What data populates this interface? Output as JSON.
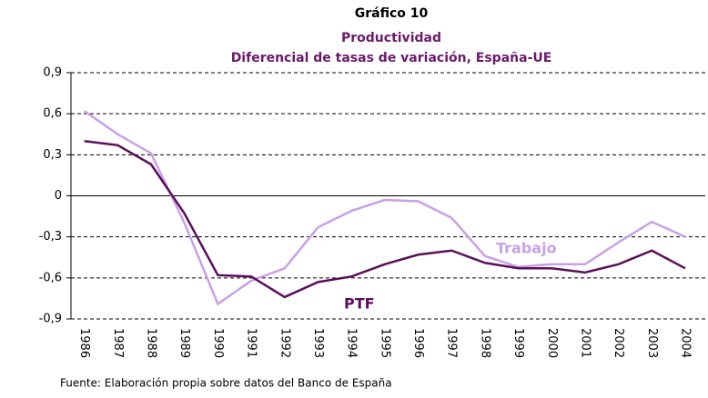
{
  "chart_data": {
    "type": "line",
    "title": "Gráfico 10",
    "subtitle": "Productividad",
    "subtitle2": "Diferencial de tasas de  variación, España-UE",
    "source": "Fuente: Elaboración propia sobre datos del Banco de España",
    "categories": [
      "1986",
      "1987",
      "1988",
      "1989",
      "1990",
      "1991",
      "1992",
      "1993",
      "1994",
      "1995",
      "1996",
      "1997",
      "1998",
      "1999",
      "2000",
      "2001",
      "2002",
      "2003",
      "2004"
    ],
    "series": [
      {
        "name": "Trabajo",
        "color": "#c9a0e6",
        "values": [
          0.62,
          0.45,
          0.31,
          -0.2,
          -0.79,
          -0.62,
          -0.53,
          -0.23,
          -0.11,
          -0.03,
          -0.04,
          -0.16,
          -0.44,
          -0.52,
          -0.5,
          -0.5,
          -0.34,
          -0.19,
          -0.3
        ]
      },
      {
        "name": "PTF",
        "color": "#5a0f5a",
        "values": [
          0.4,
          0.37,
          0.23,
          -0.13,
          -0.58,
          -0.59,
          -0.74,
          -0.63,
          -0.59,
          -0.5,
          -0.43,
          -0.4,
          -0.49,
          -0.53,
          -0.53,
          -0.56,
          -0.5,
          -0.4,
          -0.53
        ]
      }
    ],
    "ylim": [
      -0.9,
      0.9
    ],
    "yticks": [
      {
        "value": 0.9,
        "label": "0,9"
      },
      {
        "value": 0.6,
        "label": "0,6"
      },
      {
        "value": 0.3,
        "label": "0,3"
      },
      0,
      {
        "value": -0.3,
        "label": "-0,3"
      },
      {
        "value": -0.6,
        "label": "-0,6"
      },
      {
        "value": -0.9,
        "label": "-0,9"
      }
    ],
    "grid": true
  }
}
